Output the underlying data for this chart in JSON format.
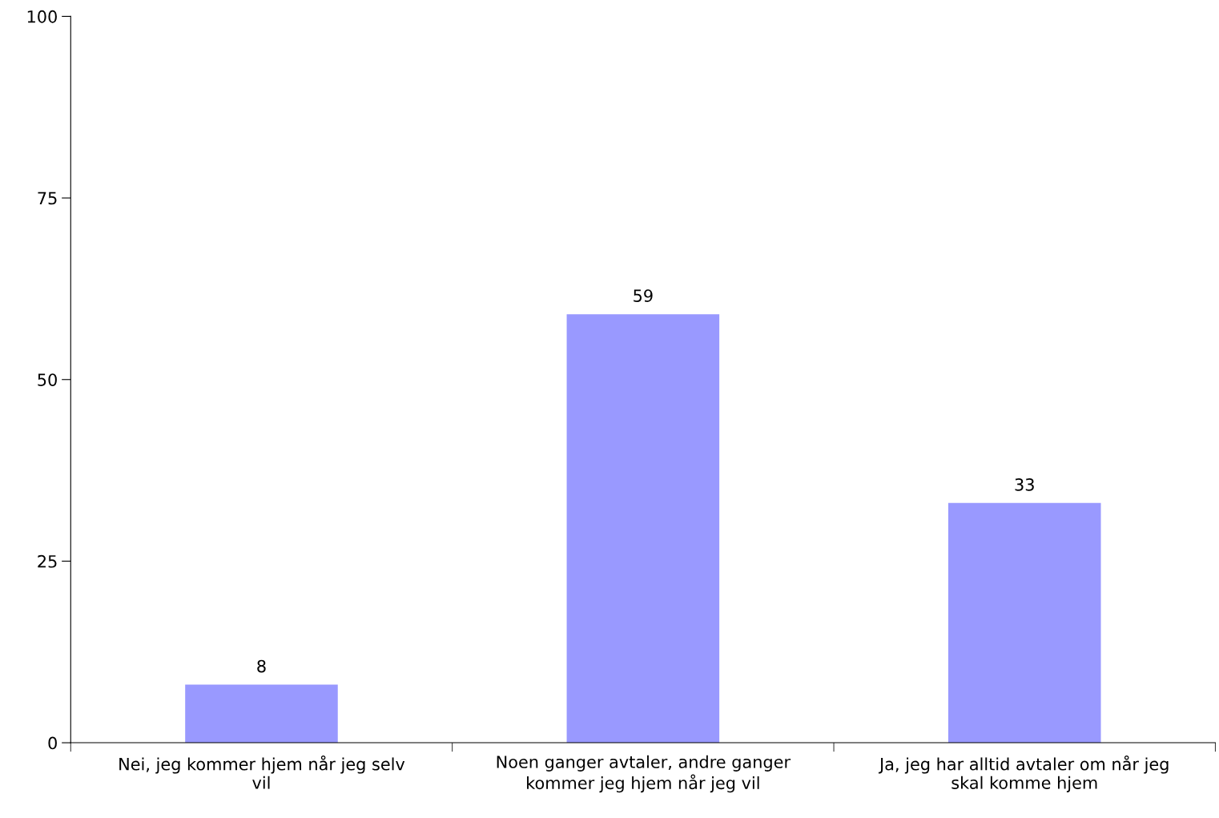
{
  "chart_data": {
    "type": "bar",
    "categories": [
      "Nei, jeg kommer hjem når jeg selv\nvil",
      "Noen ganger avtaler, andre ganger\nkommer jeg hjem når jeg vil",
      "Ja, jeg har alltid avtaler om når jeg\nskal komme hjem"
    ],
    "values": [
      8,
      59,
      33
    ],
    "color": "#9999ff",
    "ylim": [
      0,
      100
    ],
    "yticks": [
      0,
      25,
      50,
      75,
      100
    ],
    "data_labels": true,
    "grid": false
  }
}
